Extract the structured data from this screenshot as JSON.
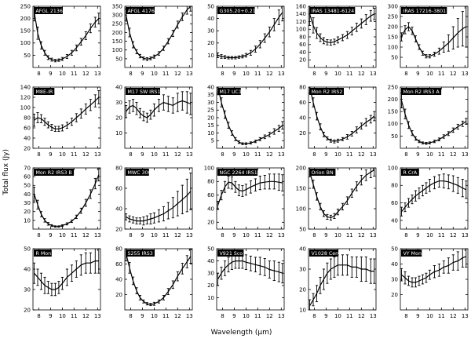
{
  "figure": {
    "xlabel": "Wavelength (μm)",
    "ylabel": "Total flux (Jy)"
  },
  "chart_data": {
    "type": "line",
    "description": "Grid of 20 mid-infrared spectra with error bars, flux vs wavelength",
    "layout": {
      "rows": 4,
      "cols": 5,
      "grid": false,
      "errorbars": true,
      "line_color": "#000000",
      "background": "#ffffff"
    },
    "x_range": [
      7.5,
      13.25
    ],
    "x_ticks": [
      8,
      9,
      10,
      11,
      12,
      13
    ],
    "x": [
      7.6,
      7.9,
      8.2,
      8.5,
      8.8,
      9.1,
      9.4,
      9.7,
      10.0,
      10.4,
      10.8,
      11.2,
      11.6,
      12.0,
      12.4,
      12.8,
      13.1
    ],
    "panels": [
      {
        "label": "AFGL 2136",
        "ylim": [
          0,
          250
        ],
        "yticks": [
          50,
          100,
          150,
          200,
          250
        ],
        "y": [
          230,
          140,
          90,
          60,
          40,
          32,
          28,
          30,
          35,
          45,
          60,
          80,
          105,
          130,
          160,
          185,
          200
        ],
        "err": [
          40,
          25,
          15,
          10,
          8,
          6,
          5,
          5,
          6,
          8,
          10,
          12,
          14,
          16,
          18,
          20,
          22
        ]
      },
      {
        "label": "AFGL 4176",
        "ylim": [
          0,
          350
        ],
        "yticks": [
          50,
          100,
          150,
          200,
          250,
          300,
          350
        ],
        "y": [
          300,
          200,
          130,
          90,
          65,
          52,
          48,
          52,
          62,
          80,
          110,
          150,
          195,
          245,
          290,
          330,
          350
        ],
        "err": [
          35,
          25,
          18,
          12,
          10,
          8,
          8,
          8,
          9,
          10,
          12,
          15,
          18,
          20,
          22,
          25,
          28
        ]
      },
      {
        "label": "G305.20+0.21",
        "ylim": [
          0,
          50
        ],
        "yticks": [
          10,
          20,
          30,
          40,
          50
        ],
        "y": [
          10,
          9,
          8.5,
          8,
          8,
          8,
          8.5,
          9,
          10,
          12,
          15,
          19,
          24,
          29,
          35,
          41,
          45
        ],
        "err": [
          2,
          1.5,
          1.2,
          1,
          1,
          1,
          1,
          1.2,
          1.5,
          2,
          2.5,
          3,
          3.5,
          4,
          5,
          6,
          7
        ]
      },
      {
        "label": "IRAS 13481-6124",
        "ylim": [
          0,
          160
        ],
        "yticks": [
          20,
          40,
          60,
          80,
          100,
          120,
          140,
          160
        ],
        "y": [
          140,
          110,
          90,
          78,
          70,
          66,
          65,
          67,
          72,
          78,
          85,
          95,
          105,
          115,
          125,
          135,
          140
        ],
        "err": [
          30,
          20,
          14,
          10,
          8,
          7,
          7,
          7,
          8,
          8,
          9,
          10,
          11,
          12,
          13,
          14,
          15
        ]
      },
      {
        "label": "IRAS 17216-3801",
        "ylim": [
          0,
          300
        ],
        "yticks": [
          50,
          100,
          150,
          200,
          250,
          300
        ],
        "y": [
          150,
          185,
          200,
          180,
          140,
          100,
          70,
          55,
          55,
          65,
          80,
          100,
          120,
          145,
          170,
          190,
          200
        ],
        "err": [
          20,
          20,
          20,
          18,
          15,
          12,
          10,
          8,
          8,
          10,
          15,
          25,
          40,
          55,
          70,
          85,
          100
        ]
      },
      {
        "label": "M8E-IR",
        "ylim": [
          20,
          140
        ],
        "yticks": [
          20,
          40,
          60,
          80,
          100,
          120,
          140
        ],
        "y": [
          75,
          80,
          78,
          72,
          66,
          61,
          58,
          58,
          60,
          65,
          72,
          80,
          88,
          97,
          105,
          113,
          120
        ],
        "err": [
          12,
          10,
          8,
          7,
          6,
          6,
          5,
          5,
          6,
          6,
          7,
          8,
          9,
          10,
          11,
          12,
          13
        ]
      },
      {
        "label": "M17 SW IRS1",
        "ylim": [
          0,
          40
        ],
        "yticks": [
          10,
          20,
          30,
          40
        ],
        "y": [
          24,
          27,
          28,
          26,
          23,
          21,
          20,
          22,
          25,
          28,
          30,
          29,
          28,
          30,
          31,
          30,
          29
        ],
        "err": [
          4,
          4,
          4,
          4,
          3,
          3,
          3,
          3,
          4,
          4,
          5,
          5,
          5,
          6,
          6,
          7,
          7
        ]
      },
      {
        "label": "M17 UC1",
        "ylim": [
          0,
          40
        ],
        "yticks": [
          5,
          10,
          15,
          20,
          25,
          30,
          35,
          40
        ],
        "y": [
          40,
          30,
          22,
          15,
          10,
          6,
          4,
          3,
          3,
          3.5,
          4.5,
          6,
          7.5,
          9,
          11,
          13,
          15
        ],
        "err": [
          4,
          3,
          2.5,
          2,
          1.5,
          1,
          0.8,
          0.6,
          0.6,
          0.7,
          0.8,
          1,
          1.2,
          1.5,
          1.8,
          2,
          2.5
        ]
      },
      {
        "label": "Mon R2 IRS2",
        "ylim": [
          0,
          80
        ],
        "yticks": [
          20,
          40,
          60,
          80
        ],
        "y": [
          80,
          60,
          42,
          28,
          18,
          13,
          10,
          9,
          10,
          12,
          15,
          19,
          24,
          29,
          34,
          38,
          42
        ],
        "err": [
          8,
          6,
          5,
          4,
          3,
          2,
          2,
          2,
          2,
          2,
          3,
          3,
          4,
          4,
          5,
          5,
          6
        ]
      },
      {
        "label": "Mon R2 IRS3 A",
        "ylim": [
          0,
          250
        ],
        "yticks": [
          50,
          100,
          150,
          200,
          250
        ],
        "y": [
          195,
          140,
          95,
          62,
          40,
          28,
          22,
          20,
          22,
          28,
          36,
          48,
          60,
          74,
          88,
          100,
          110
        ],
        "err": [
          30,
          20,
          14,
          10,
          7,
          5,
          4,
          4,
          4,
          5,
          6,
          7,
          8,
          9,
          10,
          11,
          12
        ]
      },
      {
        "label": "Mon R2 IRS3 B",
        "ylim": [
          0,
          70
        ],
        "yticks": [
          10,
          20,
          30,
          40,
          50,
          60,
          70
        ],
        "y": [
          40,
          28,
          17,
          10,
          6,
          4,
          3,
          3,
          4,
          6,
          9,
          14,
          21,
          30,
          40,
          52,
          62
        ],
        "err": [
          8,
          5,
          3,
          2,
          1.5,
          1,
          0.8,
          0.8,
          1,
          1.2,
          1.5,
          2,
          3,
          4,
          5,
          6,
          7
        ]
      },
      {
        "label": "MWC 300",
        "ylim": [
          20,
          80
        ],
        "yticks": [
          20,
          40,
          60,
          80
        ],
        "y": [
          32,
          30,
          29,
          28,
          28,
          28,
          29,
          30,
          31,
          33,
          35,
          38,
          41,
          45,
          49,
          53,
          57
        ],
        "err": [
          3,
          3,
          3,
          3,
          3,
          4,
          4,
          5,
          5,
          6,
          7,
          8,
          10,
          12,
          14,
          16,
          18
        ]
      },
      {
        "label": "NGC 2264 IRS1",
        "ylim": [
          10,
          100
        ],
        "yticks": [
          20,
          40,
          60,
          80,
          100
        ],
        "y": [
          45,
          60,
          72,
          79,
          78,
          72,
          67,
          66,
          68,
          72,
          75,
          78,
          79,
          80,
          80,
          79,
          78
        ],
        "err": [
          6,
          7,
          8,
          9,
          9,
          8,
          8,
          8,
          8,
          9,
          9,
          10,
          10,
          11,
          11,
          12,
          12
        ]
      },
      {
        "label": "Orion BN",
        "ylim": [
          50,
          200
        ],
        "yticks": [
          50,
          100,
          150,
          200
        ],
        "y": [
          190,
          160,
          130,
          105,
          88,
          80,
          78,
          82,
          92,
          105,
          120,
          138,
          155,
          170,
          182,
          190,
          195
        ],
        "err": [
          12,
          10,
          9,
          8,
          7,
          6,
          6,
          6,
          7,
          8,
          9,
          10,
          11,
          12,
          13,
          14,
          15
        ]
      },
      {
        "label": "R CrA",
        "ylim": [
          30,
          100
        ],
        "yticks": [
          40,
          60,
          80,
          100
        ],
        "y": [
          50,
          55,
          60,
          64,
          68,
          71,
          74,
          77,
          80,
          83,
          85,
          85,
          84,
          82,
          80,
          77,
          75
        ],
        "err": [
          5,
          5,
          5,
          5,
          6,
          6,
          6,
          6,
          7,
          7,
          7,
          8,
          8,
          9,
          9,
          10,
          10
        ]
      },
      {
        "label": "R Mon",
        "ylim": [
          20,
          50
        ],
        "yticks": [
          20,
          30,
          40,
          50
        ],
        "y": [
          38,
          36,
          34,
          32,
          31,
          30,
          30,
          31,
          33,
          36,
          38,
          40,
          42,
          43,
          43,
          44,
          44
        ],
        "err": [
          5,
          4,
          4,
          4,
          3,
          3,
          3,
          3,
          3,
          4,
          4,
          4,
          5,
          5,
          5,
          6,
          6
        ]
      },
      {
        "label": "S255 IRS3",
        "ylim": [
          0,
          80
        ],
        "yticks": [
          20,
          40,
          60,
          80
        ],
        "y": [
          74,
          55,
          38,
          25,
          16,
          11,
          8,
          7,
          8,
          11,
          16,
          24,
          33,
          44,
          54,
          63,
          70
        ],
        "err": [
          10,
          7,
          5,
          4,
          3,
          2,
          1.5,
          1.5,
          2,
          2,
          3,
          4,
          5,
          6,
          7,
          8,
          9
        ]
      },
      {
        "label": "V921 Sco",
        "ylim": [
          0,
          50
        ],
        "yticks": [
          10,
          20,
          30,
          40,
          50
        ],
        "y": [
          25,
          30,
          34,
          37,
          39,
          40,
          40,
          40,
          39,
          38,
          37,
          36,
          35,
          33,
          32,
          31,
          30
        ],
        "err": [
          5,
          5,
          6,
          6,
          6,
          6,
          6,
          6,
          6,
          6,
          6,
          7,
          7,
          7,
          8,
          8,
          8
        ]
      },
      {
        "label": "V1028 Cen",
        "ylim": [
          10,
          40
        ],
        "yticks": [
          10,
          20,
          30,
          40
        ],
        "y": [
          12,
          15,
          18,
          22,
          25,
          28,
          30,
          31,
          32,
          32,
          32,
          31,
          31,
          30,
          30,
          29,
          29
        ],
        "err": [
          3,
          3,
          4,
          4,
          5,
          5,
          5,
          5,
          5,
          5,
          5,
          5,
          5,
          6,
          6,
          6,
          6
        ]
      },
      {
        "label": "VY Mon",
        "ylim": [
          10,
          50
        ],
        "yticks": [
          20,
          30,
          40,
          50
        ],
        "y": [
          33,
          31,
          29,
          28,
          28,
          29,
          30,
          31,
          33,
          35,
          36,
          38,
          39,
          41,
          42,
          44,
          45
        ],
        "err": [
          4,
          4,
          3,
          3,
          3,
          3,
          3,
          3,
          3,
          4,
          4,
          4,
          5,
          5,
          6,
          6,
          7
        ]
      }
    ]
  }
}
